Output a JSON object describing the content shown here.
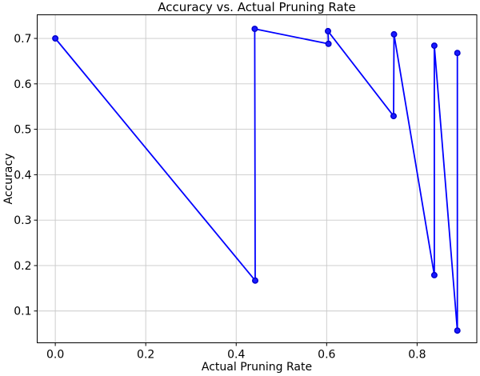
{
  "figure": {
    "background": "#ffffff"
  },
  "chart_data": {
    "type": "line",
    "title": "Accuracy vs. Actual Pruning Rate",
    "xlabel": "Actual Pruning Rate",
    "ylabel": "Accuracy",
    "series": [
      {
        "name": "accuracy-vs-pruning",
        "x": [
          0.0,
          0.442,
          0.441,
          0.604,
          0.603,
          0.748,
          0.749,
          0.838,
          0.838,
          0.889,
          0.889
        ],
        "y": [
          0.7,
          0.167,
          0.721,
          0.688,
          0.716,
          0.529,
          0.709,
          0.179,
          0.684,
          0.057,
          0.668
        ],
        "color": "#0000ff",
        "marker": "o",
        "line_width": 1.8
      }
    ],
    "xticks": {
      "values": [
        0.0,
        0.2,
        0.4,
        0.6,
        0.8
      ],
      "labels": [
        "0.0",
        "0.2",
        "0.4",
        "0.6",
        "0.8"
      ]
    },
    "yticks": {
      "values": [
        0.1,
        0.2,
        0.3,
        0.4,
        0.5,
        0.6,
        0.7
      ],
      "labels": [
        "0.1",
        "0.2",
        "0.3",
        "0.4",
        "0.5",
        "0.6",
        "0.7"
      ]
    },
    "xlim": [
      -0.04,
      0.932
    ],
    "ylim": [
      0.03,
      0.752
    ],
    "grid": true,
    "legend": false,
    "colors": {
      "line": "#0000ff",
      "marker_fill": "#1a1aff",
      "marker_edge": "#0000cc",
      "grid": "#c9c9c9",
      "spine": "#000000",
      "text": "#000000"
    }
  }
}
